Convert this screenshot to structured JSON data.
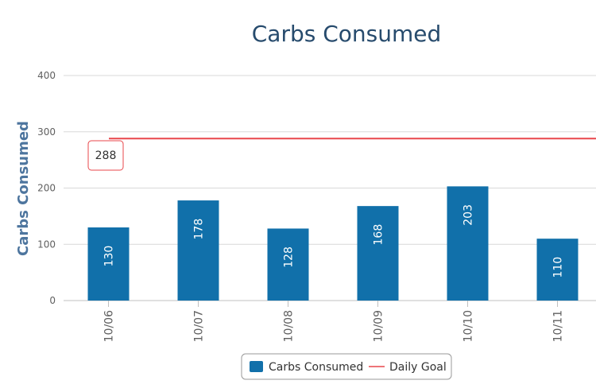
{
  "chart_data": {
    "type": "bar",
    "title": "Carbs Consumed",
    "xlabel": "",
    "ylabel": "Carbs Consumed",
    "ylim": [
      0,
      400
    ],
    "yticks": [
      0,
      100,
      200,
      300,
      400
    ],
    "grid": true,
    "categories": [
      "10/06",
      "10/07",
      "10/08",
      "10/09",
      "10/10",
      "10/11"
    ],
    "series": [
      {
        "name": "Carbs Consumed",
        "type": "bar",
        "values": [
          130,
          178,
          128,
          168,
          203,
          110
        ],
        "color": "#1170aa"
      },
      {
        "name": "Daily Goal",
        "type": "line",
        "value": 288,
        "color": "#e8474b",
        "label": "288"
      }
    ],
    "legend": "bottom-center"
  }
}
